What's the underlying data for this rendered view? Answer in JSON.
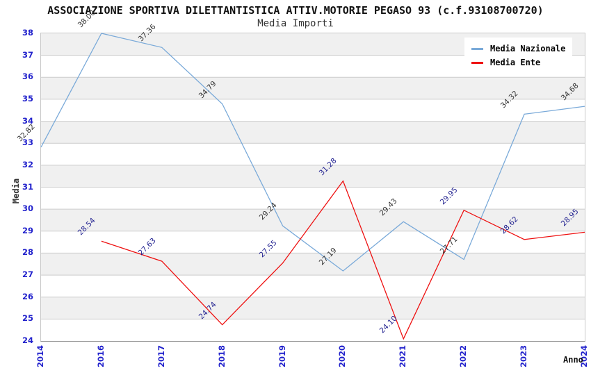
{
  "header": {
    "title": "ASSOCIAZIONE SPORTIVA DILETTANTISTICA ATTIV.MOTORIE PEGASO 93 (c.f.93108700720)",
    "subtitle": "Media Importi"
  },
  "chart_data": {
    "type": "line",
    "categories": [
      "2014",
      "2016",
      "2017",
      "2018",
      "2019",
      "2020",
      "2021",
      "2022",
      "2023",
      "2024"
    ],
    "series": [
      {
        "name": "Media Nazionale",
        "color": "#7aaad9",
        "label_color": "#333333",
        "values": [
          32.82,
          38.0,
          37.36,
          34.79,
          29.24,
          27.19,
          29.43,
          27.71,
          34.32,
          34.68
        ]
      },
      {
        "name": "Media Ente",
        "color": "#ee1111",
        "label_color": "#1f1f8f",
        "values": [
          null,
          28.54,
          27.63,
          24.74,
          27.55,
          31.28,
          24.1,
          29.95,
          28.62,
          28.95
        ]
      }
    ],
    "xlabel": "Anno",
    "ylabel": "Media",
    "ylim": [
      24,
      38
    ],
    "ytick_step": 1,
    "grid": true,
    "gridline_color": "#cccccc",
    "band_colors": [
      "#f0f0f0",
      "#ffffff"
    ],
    "tick_label_color": "#2222cc",
    "legend_position": "top-right"
  }
}
